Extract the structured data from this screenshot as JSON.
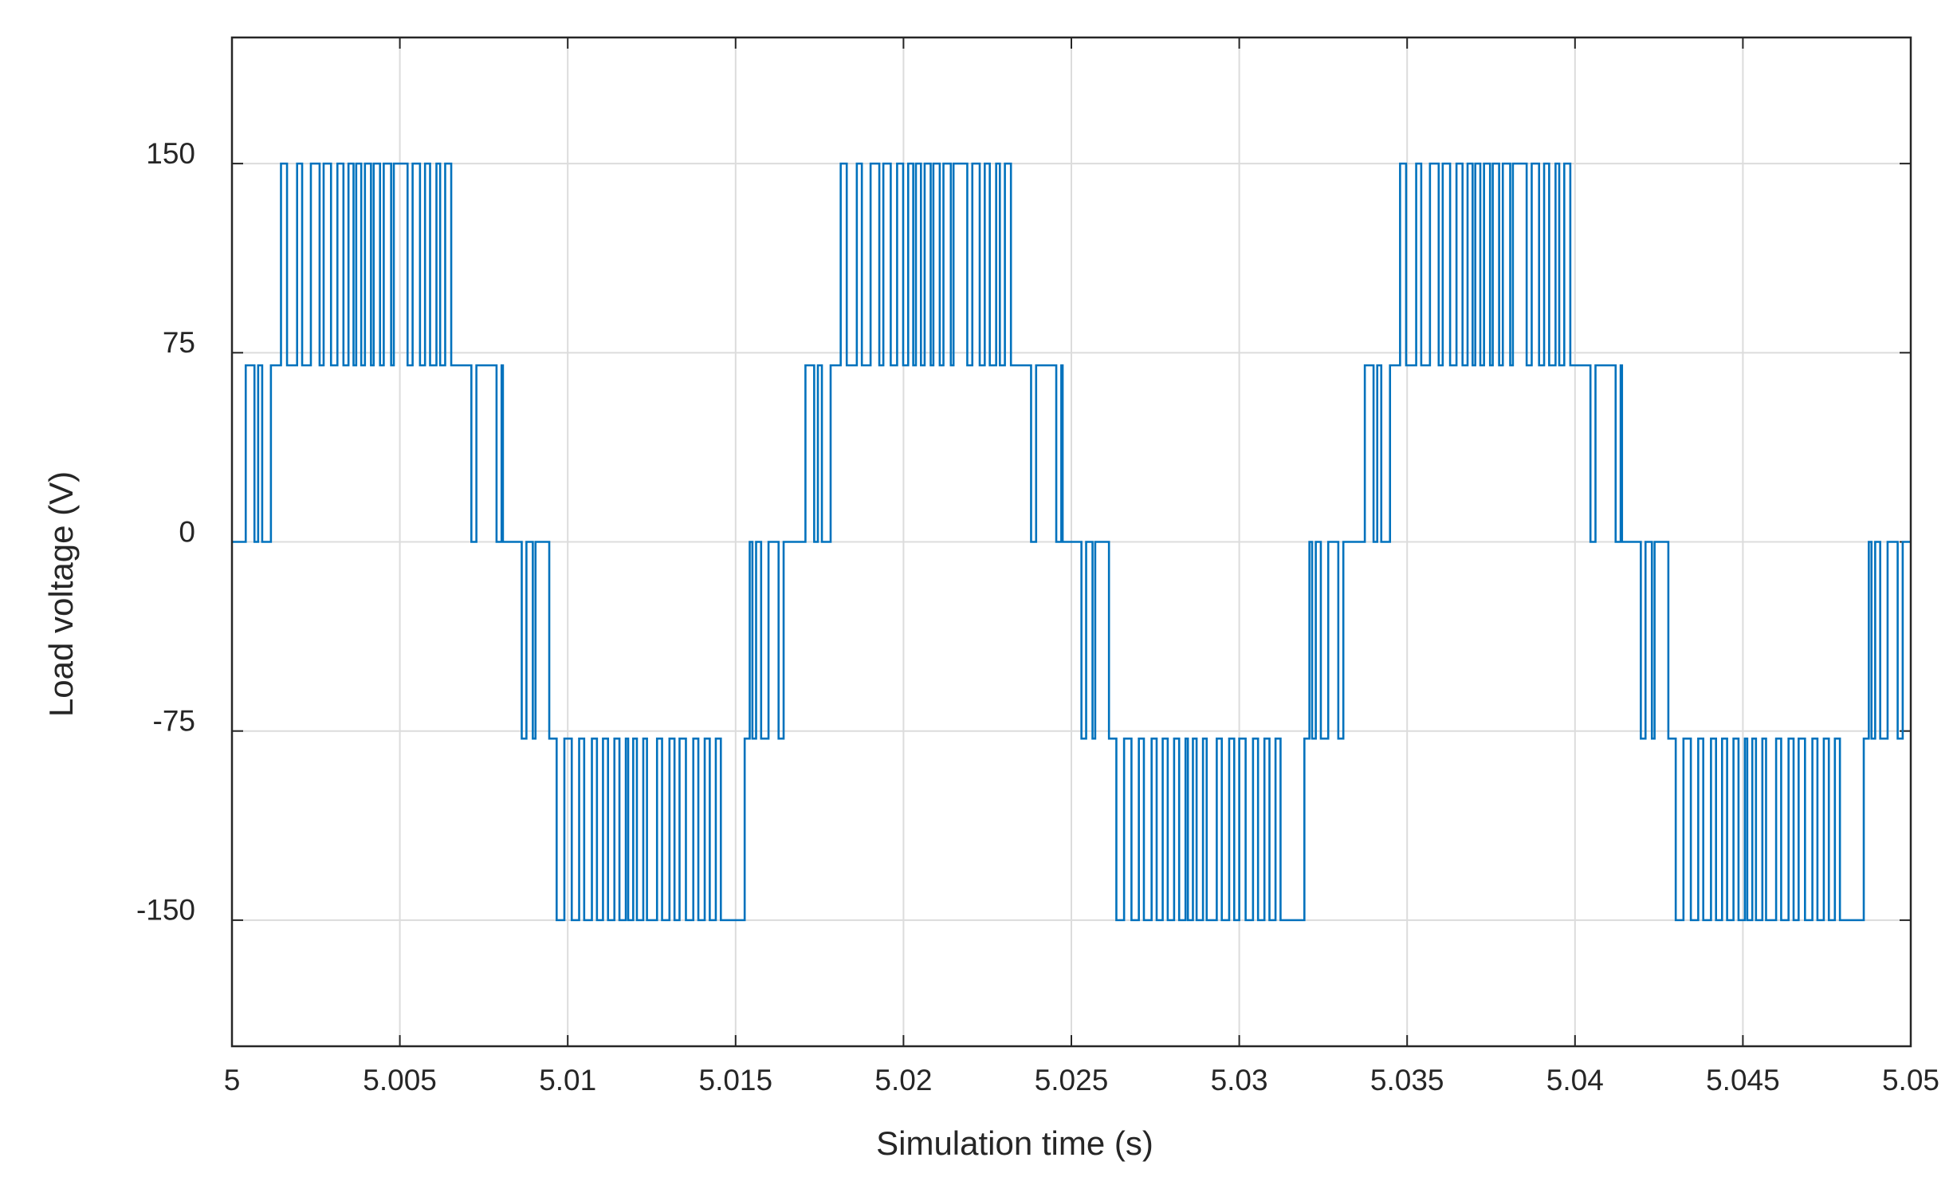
{
  "chart_data": {
    "type": "line",
    "step": "post",
    "xlabel": "Simulation time (s)",
    "ylabel": "Load voltage (V)",
    "color": "#0072bd",
    "grid": true,
    "xlim": [
      5,
      5.05
    ],
    "ylim": [
      -200,
      200
    ],
    "xticks": [
      5,
      5.005,
      5.01,
      5.015,
      5.02,
      5.025,
      5.03,
      5.035,
      5.04,
      5.045,
      5.05
    ],
    "yticks": [
      -150,
      -75,
      0,
      75,
      150
    ],
    "x": [
      5.0,
      5.00041,
      5.00067,
      5.00078,
      5.0009,
      5.00116,
      5.00146,
      5.00164,
      5.00194,
      5.00209,
      5.00235,
      5.00261,
      5.00273,
      5.00295,
      5.00314,
      5.00332,
      5.00347,
      5.00362,
      5.0037,
      5.00385,
      5.00396,
      5.00414,
      5.00422,
      5.00441,
      5.00452,
      5.00474,
      5.00482,
      5.00523,
      5.00538,
      5.0056,
      5.00575,
      5.0059,
      5.00609,
      5.0062,
      5.00635,
      5.00653,
      5.00713,
      5.00728,
      5.00788,
      5.00803,
      5.00807,
      5.00863,
      5.00877,
      5.00896,
      5.00904,
      5.00945,
      5.00967,
      5.0099,
      5.01012,
      5.01034,
      5.01049,
      5.01072,
      5.01087,
      5.01105,
      5.0112,
      5.01139,
      5.01154,
      5.01173,
      5.0118,
      5.01195,
      5.01206,
      5.01225,
      5.01236,
      5.01266,
      5.01281,
      5.01303,
      5.01318,
      5.01333,
      5.01352,
      5.01374,
      5.01389,
      5.01408,
      5.01423,
      5.01441,
      5.01456,
      5.01527,
      5.01542,
      5.0155,
      5.01561,
      5.01576,
      5.01598,
      5.01628,
      5.01643,
      5.01667,
      5.01708,
      5.01734,
      5.01745,
      5.01757,
      5.01783,
      5.01813,
      5.01831,
      5.01861,
      5.01876,
      5.01902,
      5.01928,
      5.0194,
      5.01962,
      5.01981,
      5.01999,
      5.02014,
      5.02029,
      5.02037,
      5.02052,
      5.02063,
      5.02081,
      5.02089,
      5.02108,
      5.02119,
      5.02141,
      5.02149,
      5.0219,
      5.02205,
      5.02227,
      5.02242,
      5.02257,
      5.02276,
      5.02287,
      5.02302,
      5.0232,
      5.0238,
      5.02395,
      5.02455,
      5.0247,
      5.02474,
      5.0253,
      5.02544,
      5.02563,
      5.02571,
      5.02612,
      5.02634,
      5.02657,
      5.02679,
      5.02701,
      5.02716,
      5.02739,
      5.02754,
      5.02772,
      5.02787,
      5.02806,
      5.02821,
      5.0284,
      5.02847,
      5.02862,
      5.02873,
      5.02892,
      5.02903,
      5.02933,
      5.02948,
      5.0297,
      5.02985,
      5.03,
      5.03019,
      5.03041,
      5.03056,
      5.03075,
      5.0309,
      5.03108,
      5.03123,
      5.03194,
      5.03209,
      5.03217,
      5.03228,
      5.03243,
      5.03265,
      5.03295,
      5.0331,
      5.03333,
      5.03374,
      5.034,
      5.03411,
      5.03423,
      5.03449,
      5.03479,
      5.03497,
      5.03527,
      5.03542,
      5.03568,
      5.03594,
      5.03606,
      5.03628,
      5.03647,
      5.03665,
      5.0368,
      5.03695,
      5.03703,
      5.03718,
      5.03729,
      5.03747,
      5.03755,
      5.03774,
      5.03785,
      5.03807,
      5.03815,
      5.03856,
      5.03871,
      5.03893,
      5.03908,
      5.03923,
      5.03942,
      5.03953,
      5.03968,
      5.03986,
      5.04046,
      5.04061,
      5.04121,
      5.04136,
      5.0414,
      5.04196,
      5.0421,
      5.04229,
      5.04237,
      5.04278,
      5.043,
      5.04323,
      5.04345,
      5.04367,
      5.04382,
      5.04405,
      5.0442,
      5.04438,
      5.04453,
      5.04472,
      5.04487,
      5.04506,
      5.04513,
      5.04528,
      5.04539,
      5.04558,
      5.04569,
      5.04599,
      5.04614,
      5.04636,
      5.04651,
      5.04666,
      5.04685,
      5.04707,
      5.04722,
      5.04741,
      5.04756,
      5.04774,
      5.04789,
      5.0486,
      5.04875,
      5.04883,
      5.04894,
      5.04909,
      5.04931,
      5.04961,
      5.04976,
      5.05
    ],
    "values": [
      0,
      70,
      0,
      70,
      0,
      70,
      150,
      70,
      150,
      70,
      150,
      70,
      150,
      70,
      150,
      70,
      150,
      70,
      150,
      70,
      150,
      70,
      150,
      70,
      150,
      70,
      150,
      70,
      150,
      70,
      150,
      70,
      150,
      70,
      150,
      70,
      0,
      70,
      0,
      70,
      0,
      -78,
      0,
      -78,
      0,
      -78,
      -150,
      -78,
      -150,
      -78,
      -150,
      -78,
      -150,
      -78,
      -150,
      -78,
      -150,
      -78,
      -150,
      -78,
      -150,
      -78,
      -150,
      -78,
      -150,
      -78,
      -150,
      -78,
      -150,
      -78,
      -150,
      -78,
      -150,
      -78,
      -150,
      -78,
      0,
      -78,
      0,
      -78,
      0,
      -78,
      0,
      0,
      70,
      0,
      70,
      0,
      70,
      150,
      70,
      150,
      70,
      150,
      70,
      150,
      70,
      150,
      70,
      150,
      70,
      150,
      70,
      150,
      70,
      150,
      70,
      150,
      70,
      150,
      70,
      150,
      70,
      150,
      70,
      150,
      70,
      150,
      70,
      0,
      70,
      0,
      70,
      0,
      -78,
      0,
      -78,
      0,
      -78,
      -150,
      -78,
      -150,
      -78,
      -150,
      -78,
      -150,
      -78,
      -150,
      -78,
      -150,
      -78,
      -150,
      -78,
      -150,
      -78,
      -150,
      -78,
      -150,
      -78,
      -150,
      -78,
      -150,
      -78,
      -150,
      -78,
      -150,
      -78,
      -150,
      -78,
      0,
      -78,
      0,
      -78,
      0,
      -78,
      0,
      0,
      70,
      0,
      70,
      0,
      70,
      150,
      70,
      150,
      70,
      150,
      70,
      150,
      70,
      150,
      70,
      150,
      70,
      150,
      70,
      150,
      70,
      150,
      70,
      150,
      70,
      150,
      70,
      150,
      70,
      150,
      70,
      150,
      70,
      150,
      70,
      0,
      70,
      0,
      70,
      0,
      -78,
      0,
      -78,
      0,
      -78,
      -150,
      -78,
      -150,
      -78,
      -150,
      -78,
      -150,
      -78,
      -150,
      -78,
      -150,
      -78,
      -150,
      -78,
      -150,
      -78,
      -150,
      -78,
      -150,
      -78,
      -150,
      -78,
      -150,
      -78,
      -150,
      -78,
      -150,
      -78,
      -150,
      -78,
      0,
      -78,
      0,
      -78,
      0,
      -78,
      0,
      0
    ]
  }
}
